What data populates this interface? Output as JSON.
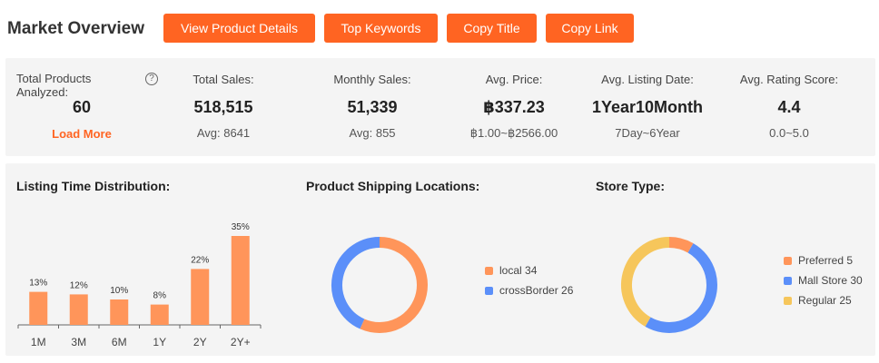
{
  "header": {
    "title": "Market Overview",
    "buttons": {
      "view_product_details": "View Product Details",
      "top_keywords": "Top Keywords",
      "copy_title": "Copy Title",
      "copy_link": "Copy Link"
    }
  },
  "stats": {
    "total_products": {
      "label": "Total Products Analyzed:",
      "value": "60",
      "link": "Load More",
      "help_icon": "?"
    },
    "total_sales": {
      "label": "Total Sales:",
      "value": "518,515",
      "sub": "Avg: 8641"
    },
    "monthly_sales": {
      "label": "Monthly Sales:",
      "value": "51,339",
      "sub": "Avg: 855"
    },
    "avg_price": {
      "label": "Avg. Price:",
      "value": "฿337.23",
      "sub": "฿1.00~฿2566.00"
    },
    "avg_listing_date": {
      "label": "Avg. Listing Date:",
      "value": "1Year10Month",
      "sub": "7Day~6Year"
    },
    "avg_rating": {
      "label": "Avg. Rating Score:",
      "value": "4.4",
      "sub": "0.0~5.0"
    }
  },
  "listing_time": {
    "title": "Listing Time Distribution:"
  },
  "shipping": {
    "title": "Product Shipping Locations:"
  },
  "store_type": {
    "title": "Store Type:"
  },
  "colors": {
    "accent": "#ff6422",
    "orange": "#ff955a",
    "blue": "#5b8ff9",
    "yellow": "#f6c65b"
  },
  "chart_data": [
    {
      "type": "bar",
      "categories": [
        "1M",
        "3M",
        "6M",
        "1Y",
        "2Y",
        "2Y+"
      ],
      "values": [
        13,
        12,
        10,
        8,
        22,
        35
      ],
      "labels": [
        "13%",
        "12%",
        "10%",
        "8%",
        "22%",
        "35%"
      ],
      "ylim": [
        0,
        35
      ],
      "grid": false
    },
    {
      "type": "pie",
      "donut": true,
      "slices": [
        {
          "label": "local",
          "value": 34,
          "legend": "local 34",
          "color": "#ff955a"
        },
        {
          "label": "crossBorder",
          "value": 26,
          "legend": "crossBorder 26",
          "color": "#5b8ff9"
        }
      ],
      "legend_position": "right"
    },
    {
      "type": "pie",
      "donut": true,
      "slices": [
        {
          "label": "Preferred",
          "value": 5,
          "legend": "Preferred 5",
          "color": "#ff955a"
        },
        {
          "label": "Mall Store",
          "value": 30,
          "legend": "Mall Store 30",
          "color": "#5b8ff9"
        },
        {
          "label": "Regular",
          "value": 25,
          "legend": "Regular 25",
          "color": "#f6c65b"
        }
      ],
      "legend_position": "right"
    }
  ]
}
